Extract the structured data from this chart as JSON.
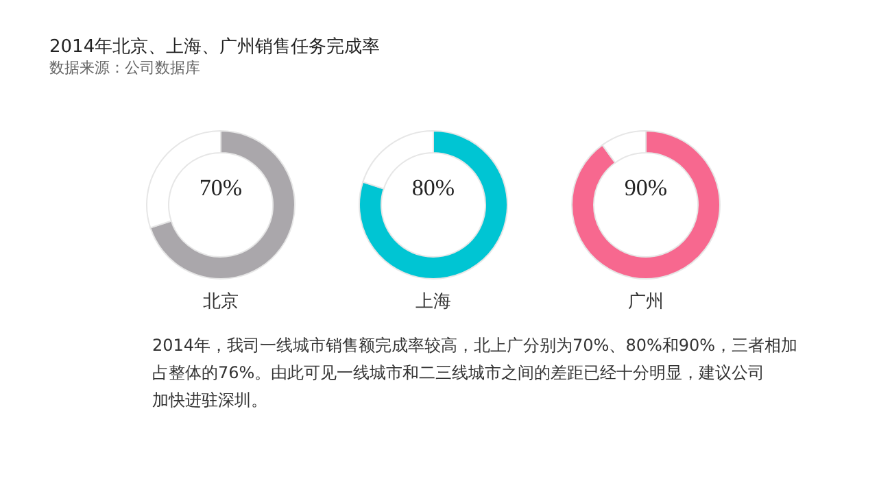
{
  "chart_data": [
    {
      "type": "donut",
      "title": "2014年北京、上海、广州销售任务完成率",
      "subtitle": "数据来源：公司数据库",
      "categories": [
        null,
        null
      ],
      "values": [
        70,
        30
      ],
      "colors": [
        "#aaa7ab",
        "#ffffff"
      ],
      "value_labels": [
        "70%",
        null
      ],
      "xlabel": "北京",
      "annotations": [
        "2014年，我司一线城市销售额完成率较高，北上广分别为70%、80%和90%，三者相加占整体的76%。由此可见一线城市和二三线城市之间的差距已经十分明显，建议公司加快进驻深圳。"
      ]
    },
    {
      "type": "donut",
      "categories": [
        null,
        null
      ],
      "values": [
        80,
        20
      ],
      "colors": [
        "#00c5d3",
        "#ffffff"
      ],
      "value_labels": [
        "80%",
        null
      ],
      "xlabel": "上海"
    },
    {
      "type": "donut",
      "categories": [
        null,
        null
      ],
      "values": [
        90,
        10
      ],
      "colors": [
        "#f7688f",
        "#ffffff"
      ],
      "value_labels": [
        "90%",
        null
      ],
      "xlabel": "广州"
    }
  ]
}
